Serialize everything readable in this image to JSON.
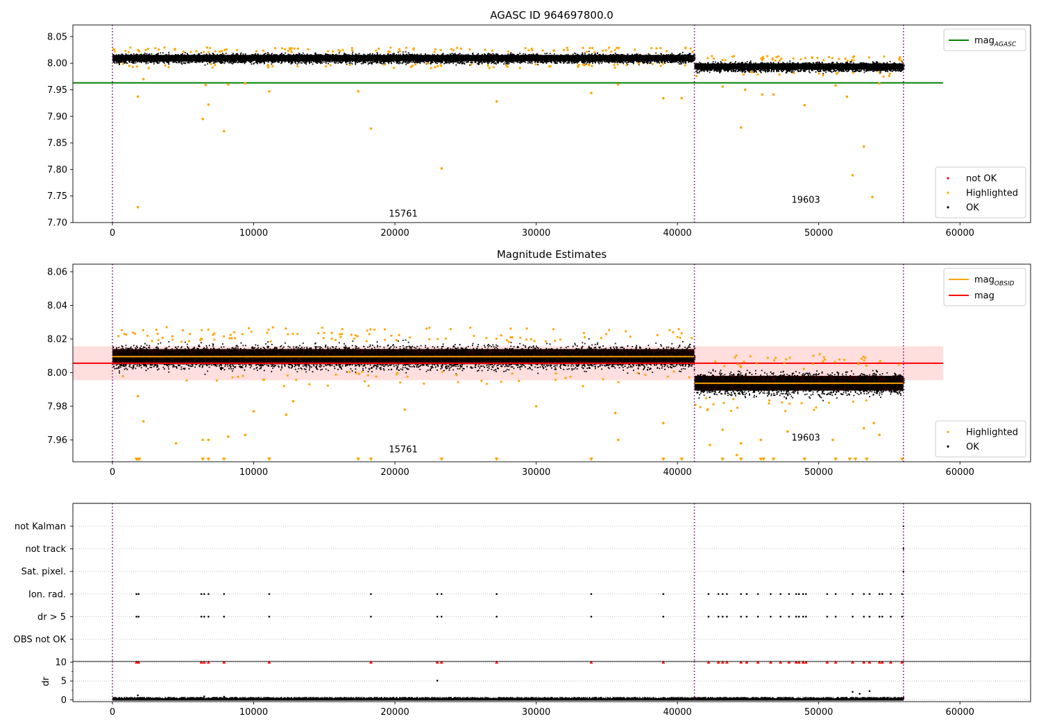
{
  "chart_data": [
    {
      "type": "scatter",
      "title": "AGASC ID 964697800.0",
      "xlabel": "",
      "ylabel": "",
      "xlim": [
        -2800,
        65000
      ],
      "ylim": [
        7.7,
        8.072
      ],
      "xticks": [
        0,
        10000,
        20000,
        30000,
        40000,
        50000,
        60000
      ],
      "yticks": [
        7.7,
        7.75,
        7.8,
        7.85,
        7.9,
        7.95,
        8.0,
        8.05
      ],
      "grid": false,
      "obsid_boundaries": [
        0,
        41200,
        56000
      ],
      "obsids": [
        {
          "label": "15761",
          "x": 20000,
          "y": 7.711
        },
        {
          "label": "19603",
          "x": 48500,
          "y": 7.737
        }
      ],
      "band_levels": [
        {
          "x_range": [
            0,
            41200
          ],
          "center": 8.01,
          "half_width": 0.01
        },
        {
          "x_range": [
            41200,
            56000
          ],
          "center": 7.994,
          "half_width": 0.01
        }
      ],
      "reference_lines": [
        {
          "name": "mag_AGASC",
          "y": 7.963,
          "x_range": [
            -2800,
            58800
          ],
          "color": "#008000"
        }
      ],
      "highlighted_points": [
        [
          1800,
          7.937
        ],
        [
          1800,
          7.729
        ],
        [
          2200,
          7.97
        ],
        [
          6400,
          7.895
        ],
        [
          6600,
          7.959
        ],
        [
          6800,
          7.922
        ],
        [
          7900,
          7.872
        ],
        [
          8200,
          7.96
        ],
        [
          9400,
          7.962
        ],
        [
          11100,
          7.947
        ],
        [
          17400,
          7.947
        ],
        [
          18300,
          7.877
        ],
        [
          23300,
          7.802
        ],
        [
          27200,
          7.928
        ],
        [
          33900,
          7.944
        ],
        [
          35800,
          7.96
        ],
        [
          39000,
          7.934
        ],
        [
          40300,
          7.934
        ],
        [
          43200,
          7.956
        ],
        [
          44500,
          7.879
        ],
        [
          44800,
          7.95
        ],
        [
          46000,
          7.941
        ],
        [
          46800,
          7.941
        ],
        [
          49000,
          7.921
        ],
        [
          51200,
          7.958
        ],
        [
          52000,
          7.937
        ],
        [
          52400,
          7.789
        ],
        [
          53200,
          7.843
        ],
        [
          53800,
          7.748
        ],
        [
          54300,
          7.962
        ]
      ],
      "legend_points": [
        {
          "name": "not OK",
          "color": "#ff0000"
        },
        {
          "name": "Highlighted",
          "color": "#ffa500"
        },
        {
          "name": "OK",
          "color": "#000000"
        }
      ],
      "legend_lines": [
        {
          "name": "mag",
          "sub": "AGASC",
          "color": "#008000"
        }
      ],
      "legend_placement": {
        "lines": "top-right",
        "points": "bottom-right"
      }
    },
    {
      "type": "scatter",
      "title": "Magnitude Estimates",
      "xlabel": "",
      "ylabel": "",
      "xlim": [
        -2800,
        65000
      ],
      "ylim": [
        7.947,
        8.0645
      ],
      "xticks": [
        0,
        10000,
        20000,
        30000,
        40000,
        50000,
        60000
      ],
      "yticks": [
        7.96,
        7.98,
        8.0,
        8.02,
        8.04,
        8.06
      ],
      "grid": false,
      "obsid_boundaries": [
        0,
        41200,
        56000
      ],
      "obsids": [
        {
          "label": "15761",
          "x": 20000,
          "y": 7.9525
        },
        {
          "label": "19603",
          "x": 48500,
          "y": 7.9595
        }
      ],
      "band_levels": [
        {
          "x_range": [
            0,
            41200
          ],
          "center": 8.0095,
          "half_width": 0.0082
        },
        {
          "x_range": [
            41200,
            56000
          ],
          "center": 7.9937,
          "half_width": 0.008
        }
      ],
      "mag_band": {
        "center": 8.0056,
        "half_width": 0.0101,
        "x_range": [
          -2800,
          58800
        ]
      },
      "reference_lines": [
        {
          "name": "mag",
          "y": 8.0056,
          "x_range": [
            -2800,
            58800
          ],
          "color": "#ff0000"
        },
        {
          "name": "mag_OBSID",
          "y": 8.0095,
          "x_range": [
            0,
            41200
          ],
          "color": "#ffa500"
        },
        {
          "name": "mag_OBSID",
          "y": 7.9937,
          "x_range": [
            41200,
            56000
          ],
          "color": "#ffa500"
        }
      ],
      "highlighted_points": [
        [
          1800,
          7.986
        ],
        [
          2200,
          7.971
        ],
        [
          4500,
          7.958
        ],
        [
          6400,
          7.96
        ],
        [
          6800,
          7.96
        ],
        [
          8200,
          7.962
        ],
        [
          9400,
          7.963
        ],
        [
          10000,
          7.977
        ],
        [
          11100,
          7.949
        ],
        [
          12300,
          7.975
        ],
        [
          12800,
          7.983
        ],
        [
          20700,
          7.978
        ],
        [
          30000,
          7.98
        ],
        [
          35800,
          7.96
        ],
        [
          35600,
          7.976
        ],
        [
          39000,
          7.97
        ],
        [
          42300,
          7.957
        ],
        [
          43200,
          7.966
        ],
        [
          44200,
          7.951
        ],
        [
          44500,
          7.958
        ],
        [
          45900,
          7.96
        ],
        [
          47800,
          7.965
        ],
        [
          51000,
          7.96
        ],
        [
          53200,
          7.967
        ],
        [
          53900,
          7.97
        ],
        [
          54300,
          7.963
        ]
      ],
      "clipped_low_markers_x": [
        1700,
        1800,
        1900,
        6400,
        6800,
        7900,
        11100,
        17400,
        18300,
        23300,
        27200,
        33900,
        39000,
        40300,
        43200,
        44500,
        45900,
        46100,
        46800,
        49000,
        51200,
        52200,
        52600,
        53400,
        55900
      ],
      "legend_points": [
        {
          "name": "Highlighted",
          "color": "#ffa500"
        },
        {
          "name": "OK",
          "color": "#000000"
        }
      ],
      "legend_lines": [
        {
          "name": "mag",
          "sub": "OBSID",
          "color": "#ffa500"
        },
        {
          "name": "mag",
          "sub": "",
          "color": "#ff0000"
        }
      ],
      "legend_placement": {
        "lines": "top-right",
        "points": "bottom-right"
      }
    },
    {
      "type": "scatter",
      "title": "",
      "xlabel": "",
      "ylabel": "",
      "xlim": [
        -2800,
        65000
      ],
      "xticks": [
        0,
        10000,
        20000,
        30000,
        40000,
        50000,
        60000
      ],
      "obsid_boundaries": [
        0,
        41200,
        56000
      ],
      "categories": [
        "not Kalman",
        "not track",
        "Sat. pixel.",
        "Ion. rad.",
        "dr > 5",
        "OBS not OK"
      ],
      "flag_points": [
        {
          "category": "Ion. rad.",
          "x": [
            1700,
            1850,
            6300,
            6500,
            6800,
            7900,
            11100,
            18300,
            23000,
            23300,
            27200,
            33900,
            39000,
            42200,
            42900,
            43200,
            43500,
            44500,
            44900,
            45700,
            46600,
            47300,
            47900,
            48400,
            48600,
            48900,
            49100,
            50600,
            51200,
            52400,
            53200,
            53600,
            54300,
            54500,
            55100,
            55900
          ]
        },
        {
          "category": "dr > 5",
          "x": [
            1700,
            1850,
            6300,
            6500,
            6800,
            7900,
            11100,
            18300,
            23000,
            23300,
            27200,
            33900,
            39000,
            42200,
            42900,
            43200,
            43500,
            44500,
            44900,
            45700,
            46600,
            47300,
            47900,
            48400,
            48600,
            48900,
            49100,
            50600,
            51200,
            52400,
            53200,
            53600,
            54300,
            54500,
            55100,
            55900
          ]
        }
      ]
    },
    {
      "type": "scatter",
      "title": "",
      "xlabel": "",
      "ylabel": "dr",
      "xlim": [
        -2800,
        65000
      ],
      "ylim": [
        -0.5,
        10.2
      ],
      "xticks": [
        0,
        10000,
        20000,
        30000,
        40000,
        50000,
        60000
      ],
      "yticks": [
        0,
        5,
        10
      ],
      "grid": true,
      "obsid_boundaries": [
        0,
        41200,
        56000
      ],
      "clipped_high_markers_x": [
        1700,
        1850,
        6300,
        6500,
        6800,
        7900,
        11100,
        18300,
        23000,
        23300,
        27200,
        33900,
        39000,
        42200,
        42900,
        43200,
        43500,
        44500,
        44900,
        45700,
        46600,
        47300,
        47900,
        48400,
        48600,
        48900,
        49100,
        50600,
        51200,
        52400,
        53200,
        53600,
        54300,
        54500,
        55100,
        55900
      ],
      "outlier_points": [
        [
          23000,
          5.1
        ],
        [
          1800,
          1.2
        ],
        [
          52400,
          2.1
        ],
        [
          53600,
          2.3
        ],
        [
          52900,
          1.6
        ],
        [
          6500,
          0.9
        ],
        [
          7900,
          0.8
        ]
      ]
    }
  ]
}
